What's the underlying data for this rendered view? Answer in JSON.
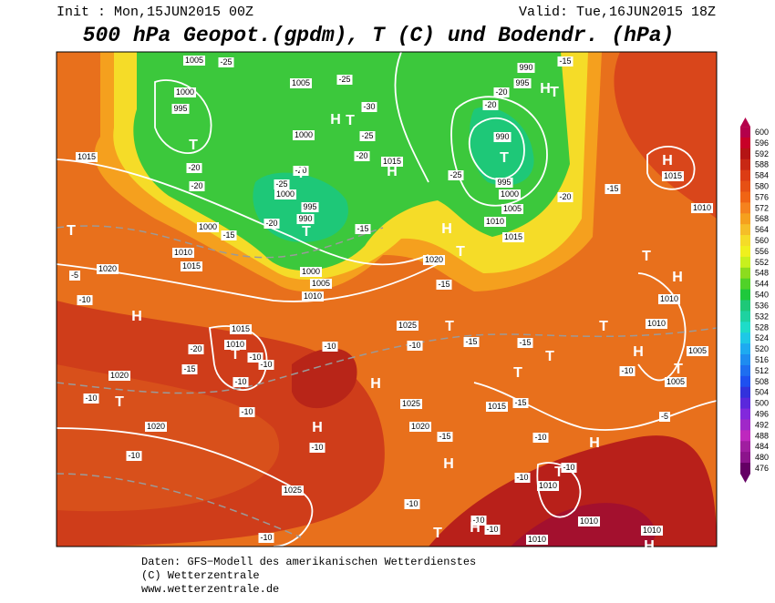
{
  "header": {
    "init": "Init : Mon,15JUN2015 00Z",
    "valid": "Valid: Tue,16JUN2015 18Z",
    "title": "500 hPa Geopot.(gpdm), T (C) und Bodendr. (hPa)"
  },
  "map": {
    "pressure_labels": [
      1005,
      1000,
      995,
      1005,
      1000,
      1000,
      995,
      990,
      1000,
      1015,
      1015,
      990,
      995,
      1000,
      1005,
      1010,
      1015,
      990,
      995,
      1010,
      1015,
      1020,
      1000,
      1005,
      1010,
      1020,
      1025,
      1015,
      1010,
      1020,
      1025,
      1020,
      1015,
      1020,
      1025,
      1015,
      1010,
      1010,
      1010,
      1005,
      1005,
      1010,
      1010,
      1010,
      1010
    ],
    "temperature_labels": [
      -25,
      -30,
      -25,
      -25,
      -20,
      -20,
      -25,
      -20,
      -20,
      -15,
      -20,
      -15,
      -20,
      -20,
      -15,
      -25,
      -20,
      -15,
      -5,
      -10,
      -15,
      -10,
      -10,
      -15,
      -15,
      -20,
      -15,
      -10,
      -10,
      -10,
      -10,
      -10,
      -10,
      -15,
      -15,
      -10,
      -10,
      -10,
      -10,
      -10,
      -10,
      -10,
      -10,
      -10,
      -5
    ],
    "pressure_centers": [
      "T",
      "T",
      "H",
      "T",
      "H",
      "T",
      "T",
      "H",
      "T",
      "H",
      "T",
      "T",
      "H",
      "T",
      "H",
      "H",
      "H",
      "H",
      "H",
      "T",
      "T",
      "H",
      "T",
      "T",
      "H",
      "T",
      "H",
      "T",
      "T",
      "T",
      "H",
      "T"
    ]
  },
  "legend": {
    "levels": [
      600,
      596,
      592,
      588,
      584,
      580,
      576,
      572,
      568,
      564,
      560,
      556,
      552,
      548,
      544,
      540,
      536,
      532,
      528,
      524,
      520,
      516,
      512,
      508,
      504,
      500,
      496,
      492,
      488,
      484,
      480,
      476
    ],
    "colors": [
      "#b4004b",
      "#c80028",
      "#b41414",
      "#c82814",
      "#dc3c14",
      "#e65014",
      "#f06414",
      "#f5821e",
      "#f5a01e",
      "#f5be28",
      "#f5dc28",
      "#f0f01e",
      "#c8f01e",
      "#8cdc1e",
      "#50d228",
      "#1ec83c",
      "#1ec878",
      "#1ed2a0",
      "#1edcc8",
      "#1ec8e6",
      "#1eaaf0",
      "#1e8cf0",
      "#1e6ef0",
      "#1e50f0",
      "#3232dc",
      "#5a28dc",
      "#8228dc",
      "#a028c8",
      "#be28be",
      "#a01ea0",
      "#8c148c",
      "#640064"
    ]
  },
  "footer": {
    "source": "Daten: GFS−Modell des amerikanischen Wetterdienstes",
    "copyright": "(C) Wetterzentrale",
    "url": "www.wetterzentrale.de"
  }
}
